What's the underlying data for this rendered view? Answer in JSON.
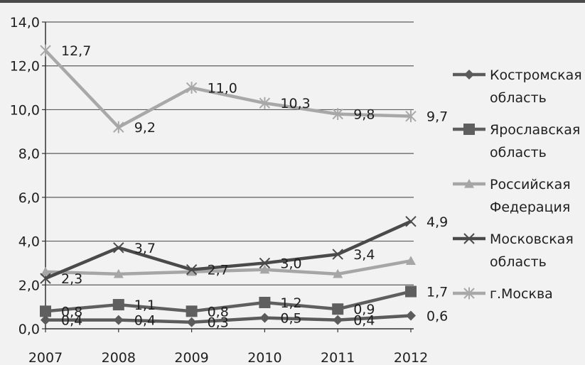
{
  "chart_data": {
    "type": "line",
    "title": "",
    "xlabel": "",
    "ylabel": "",
    "categories": [
      "2007",
      "2008",
      "2009",
      "2010",
      "2011",
      "2012"
    ],
    "ylim": [
      0,
      14
    ],
    "ytick_labels": [
      "0,0",
      "2,0",
      "4,0",
      "6,0",
      "8,0",
      "10,0",
      "12,0",
      "14,0"
    ],
    "grid": "horizontal",
    "legend_position": "right",
    "series": [
      {
        "name": "Костромская область",
        "legend_lines": [
          "Костромская",
          "область"
        ],
        "marker": "diamond",
        "color": "#5b5b5b",
        "values": [
          0.4,
          0.4,
          0.3,
          0.5,
          0.4,
          0.6
        ],
        "labels": [
          "0,4",
          "0,4",
          "0,3",
          "0,5",
          "0,4",
          "0,6"
        ]
      },
      {
        "name": "Ярославская область",
        "legend_lines": [
          "Ярославская",
          "область"
        ],
        "marker": "square",
        "color": "#5f5f5f",
        "values": [
          0.8,
          1.1,
          0.8,
          1.2,
          0.9,
          1.7
        ],
        "labels": [
          "0,8",
          "1,1",
          "0,8",
          "1,2",
          "0,9",
          "1,7"
        ]
      },
      {
        "name": "Российская Федерация",
        "legend_lines": [
          "Российская",
          "Федерация"
        ],
        "marker": "triangle",
        "color": "#a6a6a6",
        "values": [
          2.6,
          2.5,
          2.6,
          2.7,
          2.5,
          3.1
        ],
        "labels": null
      },
      {
        "name": "Московская область",
        "legend_lines": [
          "Московская",
          "область"
        ],
        "marker": "x",
        "color": "#4a4a4a",
        "values": [
          2.3,
          3.7,
          2.7,
          3.0,
          3.4,
          4.9
        ],
        "labels": [
          "2,3",
          "3,7",
          "2,7",
          "3,0",
          "3,4",
          "4,9"
        ]
      },
      {
        "name": "г.Москва",
        "legend_lines": [
          "г.Москва"
        ],
        "marker": "star",
        "color": "#a8a8a8",
        "values": [
          12.7,
          9.2,
          11.0,
          10.3,
          9.8,
          9.7
        ],
        "labels": [
          "12,7",
          "9,2",
          "11,0",
          "10,3",
          "9,8",
          "9,7"
        ]
      }
    ]
  }
}
